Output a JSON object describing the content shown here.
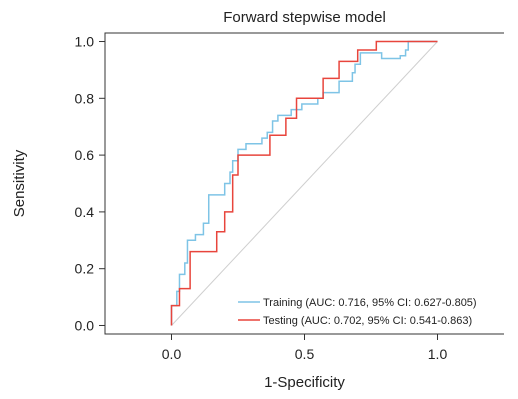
{
  "chart_data": {
    "type": "line",
    "title": "Forward stepwise model",
    "xlabel": "1-Specificity",
    "ylabel": "Sensitivity",
    "xlim": [
      -0.25,
      1.25
    ],
    "ylim": [
      -0.03,
      1.03
    ],
    "x_ticks": [
      0.0,
      0.5,
      1.0
    ],
    "x_tick_labels": [
      "0.0",
      "0.5",
      "1.0"
    ],
    "y_ticks": [
      0.0,
      0.2,
      0.4,
      0.6,
      0.8,
      1.0
    ],
    "y_tick_labels": [
      "0.0",
      "0.2",
      "0.4",
      "0.6",
      "0.8",
      "1.0"
    ],
    "grid": false,
    "legend_position": "bottom-right",
    "reference_line": {
      "from": [
        0,
        0
      ],
      "to": [
        1,
        1
      ],
      "color": "#cfcfcf"
    },
    "series": [
      {
        "name": "Training (AUC: 0.716, 95% CI: 0.627-0.805)",
        "color": "#7ec4e6",
        "points": [
          [
            0.0,
            0.0
          ],
          [
            0.0,
            0.07
          ],
          [
            0.02,
            0.07
          ],
          [
            0.02,
            0.12
          ],
          [
            0.03,
            0.12
          ],
          [
            0.03,
            0.18
          ],
          [
            0.05,
            0.18
          ],
          [
            0.05,
            0.22
          ],
          [
            0.06,
            0.22
          ],
          [
            0.06,
            0.3
          ],
          [
            0.09,
            0.3
          ],
          [
            0.09,
            0.32
          ],
          [
            0.12,
            0.32
          ],
          [
            0.12,
            0.36
          ],
          [
            0.14,
            0.36
          ],
          [
            0.14,
            0.46
          ],
          [
            0.2,
            0.46
          ],
          [
            0.2,
            0.5
          ],
          [
            0.22,
            0.5
          ],
          [
            0.22,
            0.54
          ],
          [
            0.23,
            0.54
          ],
          [
            0.23,
            0.58
          ],
          [
            0.25,
            0.58
          ],
          [
            0.25,
            0.62
          ],
          [
            0.28,
            0.62
          ],
          [
            0.28,
            0.64
          ],
          [
            0.34,
            0.64
          ],
          [
            0.34,
            0.66
          ],
          [
            0.36,
            0.66
          ],
          [
            0.36,
            0.68
          ],
          [
            0.38,
            0.68
          ],
          [
            0.38,
            0.72
          ],
          [
            0.4,
            0.72
          ],
          [
            0.4,
            0.74
          ],
          [
            0.45,
            0.74
          ],
          [
            0.45,
            0.76
          ],
          [
            0.49,
            0.76
          ],
          [
            0.49,
            0.78
          ],
          [
            0.55,
            0.78
          ],
          [
            0.55,
            0.8
          ],
          [
            0.57,
            0.8
          ],
          [
            0.57,
            0.82
          ],
          [
            0.63,
            0.82
          ],
          [
            0.63,
            0.86
          ],
          [
            0.68,
            0.86
          ],
          [
            0.68,
            0.89
          ],
          [
            0.69,
            0.89
          ],
          [
            0.69,
            0.92
          ],
          [
            0.71,
            0.92
          ],
          [
            0.71,
            0.96
          ],
          [
            0.79,
            0.96
          ],
          [
            0.79,
            0.94
          ],
          [
            0.86,
            0.94
          ],
          [
            0.86,
            0.95
          ],
          [
            0.88,
            0.95
          ],
          [
            0.88,
            0.97
          ],
          [
            0.89,
            0.97
          ],
          [
            0.89,
            1.0
          ],
          [
            1.0,
            1.0
          ]
        ]
      },
      {
        "name": "Testing (AUC: 0.702, 95% CI: 0.541-0.863)",
        "color": "#e8453c",
        "points": [
          [
            0.0,
            0.0
          ],
          [
            0.0,
            0.07
          ],
          [
            0.03,
            0.07
          ],
          [
            0.03,
            0.13
          ],
          [
            0.07,
            0.13
          ],
          [
            0.07,
            0.26
          ],
          [
            0.17,
            0.26
          ],
          [
            0.17,
            0.33
          ],
          [
            0.2,
            0.33
          ],
          [
            0.2,
            0.4
          ],
          [
            0.23,
            0.4
          ],
          [
            0.23,
            0.53
          ],
          [
            0.25,
            0.53
          ],
          [
            0.25,
            0.6
          ],
          [
            0.37,
            0.6
          ],
          [
            0.37,
            0.67
          ],
          [
            0.43,
            0.67
          ],
          [
            0.43,
            0.73
          ],
          [
            0.47,
            0.73
          ],
          [
            0.47,
            0.8
          ],
          [
            0.57,
            0.8
          ],
          [
            0.57,
            0.87
          ],
          [
            0.63,
            0.87
          ],
          [
            0.63,
            0.93
          ],
          [
            0.7,
            0.93
          ],
          [
            0.7,
            0.97
          ],
          [
            0.77,
            0.97
          ],
          [
            0.77,
            1.0
          ],
          [
            1.0,
            1.0
          ]
        ]
      }
    ]
  }
}
